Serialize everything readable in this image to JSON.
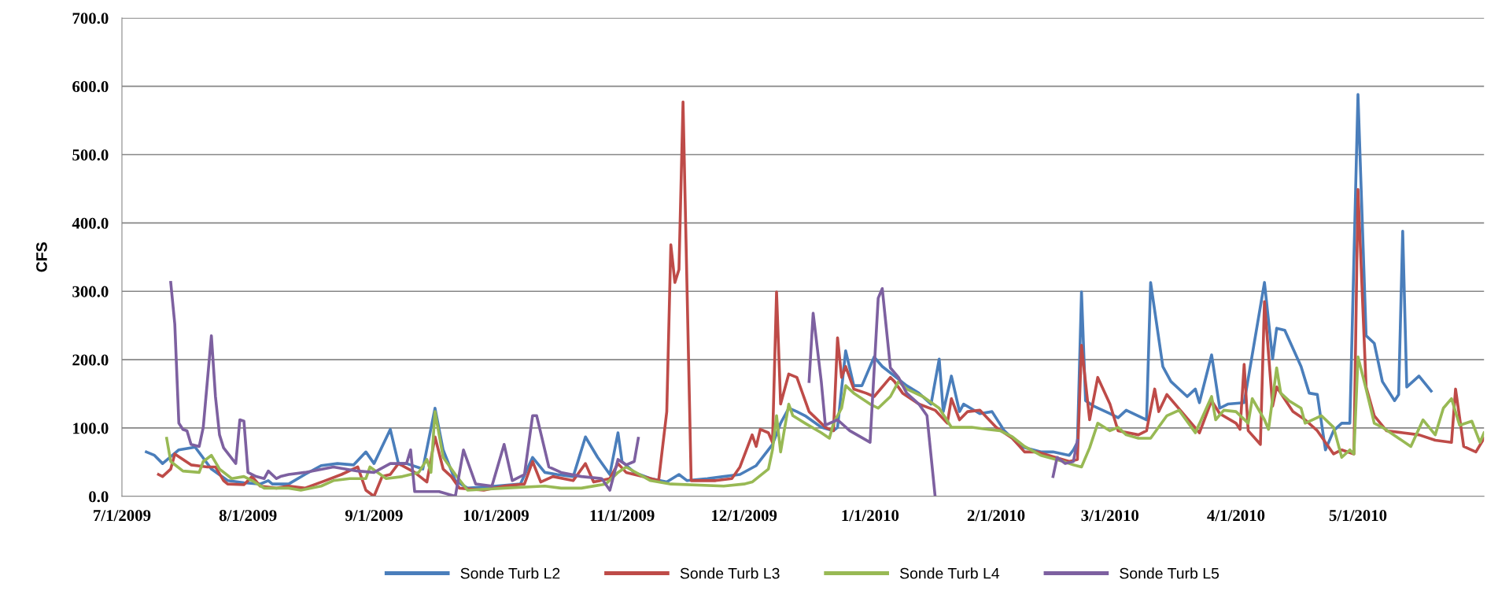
{
  "chart_data": {
    "type": "line",
    "ylabel": "CFS",
    "xlim": [
      "2009-07-01",
      "2010-06-01"
    ],
    "xticks": [
      {
        "value": "2009-07-01",
        "label": "7/1/2009"
      },
      {
        "value": "2009-08-01",
        "label": "8/1/2009"
      },
      {
        "value": "2009-09-01",
        "label": "9/1/2009"
      },
      {
        "value": "2009-10-01",
        "label": "10/1/2009"
      },
      {
        "value": "2009-11-01",
        "label": "11/1/2009"
      },
      {
        "value": "2009-12-01",
        "label": "12/1/2009"
      },
      {
        "value": "2010-01-01",
        "label": "1/1/2010"
      },
      {
        "value": "2010-02-01",
        "label": "2/1/2010"
      },
      {
        "value": "2010-03-01",
        "label": "3/1/2010"
      },
      {
        "value": "2010-04-01",
        "label": "4/1/2010"
      },
      {
        "value": "2010-05-01",
        "label": "5/1/2010"
      }
    ],
    "ylim": [
      0,
      700
    ],
    "yticks": [
      {
        "value": 0,
        "label": "0.0"
      },
      {
        "value": 100,
        "label": "100.0"
      },
      {
        "value": 200,
        "label": "200.0"
      },
      {
        "value": 300,
        "label": "300.0"
      },
      {
        "value": 400,
        "label": "400.0"
      },
      {
        "value": 500,
        "label": "500.0"
      },
      {
        "value": 600,
        "label": "600.0"
      },
      {
        "value": 700,
        "label": "700.0"
      }
    ],
    "grid": "y",
    "legend": "bottom",
    "marker": "none",
    "line_style": "solid",
    "series": [
      {
        "name": "Sonde Turb L2",
        "color": "#4a7ebb",
        "x": [
          "2009-07-07",
          "2009-07-09",
          "2009-07-11",
          "2009-07-15",
          "2009-07-19",
          "2009-07-23",
          "2009-07-27",
          "2009-07-31",
          "2009-08-04",
          "2009-08-06",
          "2009-08-07",
          "2009-08-11",
          "2009-08-15",
          "2009-08-19",
          "2009-08-23",
          "2009-08-27",
          "2009-08-30",
          "2009-09-01",
          "2009-09-05",
          "2009-09-07",
          "2009-09-09",
          "2009-09-13",
          "2009-09-16",
          "2009-09-18",
          "2009-09-21",
          "2009-09-24",
          "2009-10-01",
          "2009-10-07",
          "2009-10-10",
          "2009-10-13",
          "2009-10-16",
          "2009-10-20",
          "2009-10-23",
          "2009-10-26",
          "2009-10-29",
          "2009-10-31",
          "2009-11-01",
          "2009-11-04",
          "2009-11-08",
          "2009-11-12",
          "2009-11-15",
          "2009-11-17",
          "2009-11-22",
          "2009-11-26",
          "2009-11-30",
          "2009-12-04",
          "2009-12-08",
          "2009-12-10",
          "2009-12-12",
          "2009-12-14",
          "2009-12-16",
          "2009-12-20",
          "2009-12-23",
          "2009-12-24",
          "2009-12-26",
          "2009-12-28",
          "2009-12-30",
          "2010-01-02",
          "2010-01-04",
          "2010-01-07",
          "2010-01-10",
          "2010-01-13",
          "2010-01-16",
          "2010-01-18",
          "2010-01-19",
          "2010-01-21",
          "2010-01-23",
          "2010-01-24",
          "2010-01-28",
          "2010-01-31",
          "2010-02-03",
          "2010-02-05",
          "2010-02-07",
          "2010-02-12",
          "2010-02-15",
          "2010-02-19",
          "2010-02-20",
          "2010-02-21",
          "2010-02-22",
          "2010-02-23",
          "2010-02-25",
          "2010-03-01",
          "2010-03-03",
          "2010-03-05",
          "2010-03-10",
          "2010-03-11",
          "2010-03-14",
          "2010-03-16",
          "2010-03-20",
          "2010-03-22",
          "2010-03-23",
          "2010-03-26",
          "2010-03-28",
          "2010-03-30",
          "2010-04-03",
          "2010-04-08",
          "2010-04-10",
          "2010-04-11",
          "2010-04-13",
          "2010-04-17",
          "2010-04-19",
          "2010-04-21",
          "2010-04-23",
          "2010-04-25",
          "2010-04-27",
          "2010-04-29",
          "2010-05-01",
          "2010-05-03",
          "2010-05-05",
          "2010-05-07",
          "2010-05-10",
          "2010-05-11",
          "2010-05-12",
          "2010-05-13",
          "2010-05-16",
          "2010-05-19"
        ],
        "values": [
          65,
          60,
          48,
          68,
          72,
          40,
          23,
          20,
          18,
          23,
          18,
          18,
          32,
          45,
          48,
          46,
          65,
          48,
          98,
          48,
          48,
          40,
          129,
          68,
          23,
          12,
          15,
          18,
          57,
          35,
          32,
          29,
          87,
          57,
          32,
          93,
          51,
          35,
          26,
          21,
          32,
          23,
          26,
          29,
          32,
          45,
          76,
          107,
          129,
          124,
          118,
          101,
          96,
          101,
          213,
          162,
          162,
          204,
          190,
          176,
          162,
          151,
          135,
          201,
          124,
          176,
          124,
          135,
          121,
          124,
          96,
          85,
          73,
          65,
          65,
          60,
          68,
          79,
          299,
          140,
          132,
          121,
          115,
          126,
          112,
          313,
          190,
          168,
          146,
          157,
          137,
          207,
          129,
          135,
          137,
          313,
          201,
          246,
          243,
          190,
          151,
          149,
          68,
          96,
          107,
          107,
          588,
          235,
          224,
          168,
          140,
          149,
          388,
          160,
          176,
          154
        ]
      },
      {
        "name": "Sonde Turb L3",
        "color": "#be4b48",
        "x": [
          "2009-07-10",
          "2009-07-11",
          "2009-07-13",
          "2009-07-14",
          "2009-07-18",
          "2009-07-22",
          "2009-07-24",
          "2009-07-26",
          "2009-07-27",
          "2009-07-31",
          "2009-08-02",
          "2009-08-04",
          "2009-08-08",
          "2009-08-11",
          "2009-08-15",
          "2009-08-20",
          "2009-08-24",
          "2009-08-28",
          "2009-08-30",
          "2009-09-01",
          "2009-09-03",
          "2009-09-05",
          "2009-09-07",
          "2009-09-11",
          "2009-09-14",
          "2009-09-16",
          "2009-09-18",
          "2009-09-20",
          "2009-09-22",
          "2009-09-28",
          "2009-10-03",
          "2009-10-08",
          "2009-10-10",
          "2009-10-12",
          "2009-10-15",
          "2009-10-20",
          "2009-10-23",
          "2009-10-25",
          "2009-10-29",
          "2009-10-31",
          "2009-11-02",
          "2009-11-06",
          "2009-11-10",
          "2009-11-12",
          "2009-11-13",
          "2009-11-14",
          "2009-11-15",
          "2009-11-16",
          "2009-11-18",
          "2009-11-24",
          "2009-11-28",
          "2009-11-30",
          "2009-12-03",
          "2009-12-04",
          "2009-12-05",
          "2009-12-07",
          "2009-12-08",
          "2009-12-09",
          "2009-12-10",
          "2009-12-12",
          "2009-12-14",
          "2009-12-17",
          "2009-12-21",
          "2009-12-23",
          "2009-12-24",
          "2009-12-25",
          "2009-12-26",
          "2009-12-28",
          "2009-12-31",
          "2010-01-02",
          "2010-01-06",
          "2010-01-07",
          "2010-01-09",
          "2010-01-13",
          "2010-01-17",
          "2010-01-20",
          "2010-01-21",
          "2010-01-23",
          "2010-01-25",
          "2010-01-28",
          "2010-02-01",
          "2010-02-05",
          "2010-02-08",
          "2010-02-11",
          "2010-02-19",
          "2010-02-21",
          "2010-02-22",
          "2010-02-24",
          "2010-02-26",
          "2010-03-01",
          "2010-03-03",
          "2010-03-08",
          "2010-03-10",
          "2010-03-12",
          "2010-03-13",
          "2010-03-15",
          "2010-03-19",
          "2010-03-23",
          "2010-03-26",
          "2010-03-28",
          "2010-04-01",
          "2010-04-02",
          "2010-04-03",
          "2010-04-04",
          "2010-04-07",
          "2010-04-08",
          "2010-04-10",
          "2010-04-11",
          "2010-04-15",
          "2010-04-18",
          "2010-04-21",
          "2010-04-25",
          "2010-04-27",
          "2010-04-30",
          "2010-05-01",
          "2010-05-03",
          "2010-05-05",
          "2010-05-08",
          "2010-05-12",
          "2010-05-16",
          "2010-05-20",
          "2010-05-24",
          "2010-05-25",
          "2010-05-27",
          "2010-05-30",
          "2010-06-01"
        ],
        "values": [
          32,
          29,
          40,
          62,
          46,
          43,
          43,
          23,
          18,
          17,
          29,
          15,
          12,
          15,
          12,
          23,
          32,
          43,
          9,
          0,
          29,
          32,
          48,
          35,
          21,
          87,
          40,
          29,
          12,
          9,
          15,
          18,
          51,
          21,
          29,
          23,
          48,
          21,
          26,
          48,
          35,
          29,
          23,
          124,
          368,
          313,
          332,
          577,
          23,
          23,
          26,
          43,
          90,
          73,
          98,
          93,
          79,
          299,
          135,
          179,
          174,
          124,
          101,
          96,
          232,
          174,
          190,
          157,
          151,
          146,
          174,
          168,
          151,
          135,
          126,
          107,
          143,
          112,
          124,
          126,
          101,
          85,
          65,
          65,
          51,
          54,
          221,
          112,
          174,
          135,
          96,
          90,
          96,
          157,
          124,
          149,
          121,
          93,
          140,
          121,
          107,
          98,
          193,
          96,
          76,
          285,
          132,
          160,
          124,
          112,
          96,
          62,
          68,
          62,
          449,
          160,
          118,
          96,
          93,
          90,
          82,
          79,
          157,
          73,
          65,
          85
        ]
      },
      {
        "name": "Sonde Turb L4",
        "color": "#98b954",
        "x": [
          "2009-07-12",
          "2009-07-13",
          "2009-07-16",
          "2009-07-20",
          "2009-07-21",
          "2009-07-23",
          "2009-07-25",
          "2009-07-28",
          "2009-07-31",
          "2009-08-02",
          "2009-08-05",
          "2009-08-08",
          "2009-08-11",
          "2009-08-14",
          "2009-08-19",
          "2009-08-22",
          "2009-08-26",
          "2009-08-30",
          "2009-08-31",
          "2009-09-04",
          "2009-09-08",
          "2009-09-12",
          "2009-09-14",
          "2009-09-15",
          "2009-09-16",
          "2009-09-18",
          "2009-09-21",
          "2009-09-24",
          "2009-10-03",
          "2009-10-13",
          "2009-10-17",
          "2009-10-22",
          "2009-10-28",
          "2009-10-31",
          "2009-11-02",
          "2009-11-08",
          "2009-11-13",
          "2009-11-26",
          "2009-12-01",
          "2009-12-03",
          "2009-12-07",
          "2009-12-08",
          "2009-12-09",
          "2009-12-10",
          "2009-12-12",
          "2009-12-13",
          "2009-12-16",
          "2009-12-20",
          "2009-12-22",
          "2009-12-23",
          "2009-12-25",
          "2009-12-26",
          "2009-12-28",
          "2010-01-01",
          "2010-01-03",
          "2010-01-06",
          "2010-01-08",
          "2010-01-10",
          "2010-01-14",
          "2010-01-18",
          "2010-01-21",
          "2010-01-26",
          "2010-01-30",
          "2010-02-02",
          "2010-02-05",
          "2010-02-08",
          "2010-02-12",
          "2010-02-17",
          "2010-02-20",
          "2010-02-22",
          "2010-02-24",
          "2010-02-26",
          "2010-03-01",
          "2010-03-03",
          "2010-03-05",
          "2010-03-08",
          "2010-03-11",
          "2010-03-15",
          "2010-03-18",
          "2010-03-22",
          "2010-03-26",
          "2010-03-27",
          "2010-03-29",
          "2010-04-01",
          "2010-04-04",
          "2010-04-05",
          "2010-04-08",
          "2010-04-09",
          "2010-04-11",
          "2010-04-12",
          "2010-04-14",
          "2010-04-17",
          "2010-04-18",
          "2010-04-22",
          "2010-04-25",
          "2010-04-27",
          "2010-04-29",
          "2010-04-30",
          "2010-05-01",
          "2010-05-03",
          "2010-05-05",
          "2010-05-07",
          "2010-05-11",
          "2010-05-14",
          "2010-05-17",
          "2010-05-20",
          "2010-05-22",
          "2010-05-24",
          "2010-05-26",
          "2010-05-29",
          "2010-05-31",
          "2010-06-01"
        ],
        "values": [
          85,
          51,
          37,
          35,
          51,
          60,
          40,
          26,
          29,
          23,
          12,
          12,
          12,
          9,
          15,
          23,
          26,
          26,
          43,
          26,
          29,
          35,
          54,
          35,
          124,
          57,
          32,
          9,
          12,
          15,
          12,
          12,
          18,
          35,
          43,
          23,
          18,
          15,
          18,
          21,
          40,
          68,
          118,
          65,
          135,
          118,
          107,
          93,
          85,
          107,
          129,
          162,
          151,
          135,
          129,
          146,
          168,
          157,
          146,
          129,
          101,
          101,
          98,
          96,
          87,
          73,
          60,
          52,
          46,
          43,
          71,
          107,
          96,
          101,
          90,
          85,
          85,
          118,
          126,
          93,
          146,
          112,
          126,
          124,
          107,
          143,
          112,
          98,
          188,
          151,
          140,
          129,
          107,
          118,
          101,
          57,
          68,
          62,
          204,
          157,
          107,
          101,
          85,
          73,
          112,
          90,
          129,
          143,
          104,
          110,
          79,
          93
        ]
      },
      {
        "name": "Sonde Turb L5",
        "color": "#7d60a0",
        "x": [
          "2009-07-13",
          "2009-07-14",
          "2009-07-15",
          "2009-07-16",
          "2009-07-17",
          "2009-07-18",
          "2009-07-20",
          "2009-07-21",
          "2009-07-23",
          "2009-07-24",
          "2009-07-25",
          "2009-07-26",
          "2009-07-29",
          "2009-07-30",
          "2009-07-31",
          "2009-08-01",
          "2009-08-03",
          "2009-08-05",
          "2009-08-06",
          "2009-08-08",
          "2009-08-09",
          "2009-08-11",
          "2009-08-15",
          "2009-08-22",
          "2009-08-28",
          "2009-09-01",
          "2009-09-05",
          "2009-09-09",
          "2009-09-10",
          "2009-09-11",
          "2009-09-17",
          "2009-09-21",
          "2009-09-23",
          "2009-09-26",
          "2009-09-30",
          "2009-10-03",
          "2009-10-05",
          "2009-10-08",
          "2009-10-10",
          "2009-10-11",
          "2009-10-14",
          "2009-10-17",
          "2009-10-22",
          "2009-10-27",
          "2009-10-29",
          "2009-10-31",
          "2009-11-02",
          "2009-11-04",
          "2009-11-05",
          "2009-11-28",
          "2009-12-17",
          "2009-12-18",
          "2009-12-20",
          "2009-12-21",
          "2009-12-24",
          "2009-12-27",
          "2010-01-01",
          "2010-01-03",
          "2010-01-04",
          "2010-01-06",
          "2010-01-08",
          "2010-01-10",
          "2010-01-13",
          "2010-01-15",
          "2010-01-17",
          "2010-02-01",
          "2010-02-15",
          "2010-02-16",
          "2010-02-18",
          "2010-02-20",
          "2010-02-21"
        ],
        "values": [
          313,
          252,
          107,
          98,
          96,
          76,
          73,
          101,
          235,
          146,
          90,
          71,
          48,
          112,
          110,
          35,
          29,
          26,
          37,
          26,
          29,
          32,
          35,
          43,
          37,
          35,
          48,
          48,
          68,
          7,
          7,
          0,
          68,
          18,
          15,
          76,
          23,
          32,
          118,
          118,
          43,
          35,
          29,
          26,
          9,
          54,
          46,
          51,
          85,
          null,
          168,
          268,
          168,
          104,
          112,
          96,
          79,
          290,
          304,
          188,
          174,
          151,
          135,
          118,
          0,
          null,
          29,
          57,
          48,
          51,
          82
        ]
      }
    ]
  }
}
